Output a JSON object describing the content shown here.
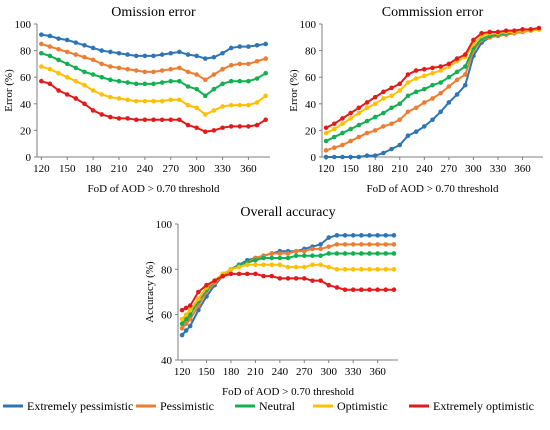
{
  "colors": {
    "extremely_pessimistic": "#2e75b6",
    "pessimistic": "#ed7d31",
    "neutral": "#12b050",
    "optimistic": "#ffc000",
    "extremely_optimistic": "#e31a1c"
  },
  "legend": {
    "items": [
      {
        "label": "Extremely pessimistic",
        "color_key": "extremely_pessimistic"
      },
      {
        "label": "Pessimistic",
        "color_key": "pessimistic"
      },
      {
        "label": "Neutral",
        "color_key": "neutral"
      },
      {
        "label": "Optimistic",
        "color_key": "optimistic"
      },
      {
        "label": "Extremely optimistic",
        "color_key": "extremely_optimistic"
      }
    ]
  },
  "chart_data": [
    {
      "type": "line",
      "title": "Omission error",
      "xlabel": "FoD of AOD > 0.70 threshold",
      "ylabel": "Error (%)",
      "x": [
        120,
        130,
        140,
        150,
        160,
        170,
        180,
        190,
        200,
        210,
        220,
        230,
        240,
        250,
        260,
        270,
        280,
        290,
        300,
        310,
        320,
        330,
        340,
        350,
        360,
        370,
        380
      ],
      "xticks": [
        120,
        150,
        180,
        210,
        240,
        270,
        300,
        330,
        360
      ],
      "ylim": [
        0,
        100
      ],
      "yticks": [
        0,
        20,
        40,
        60,
        80,
        100
      ],
      "grid": false,
      "series": [
        {
          "name": "Extremely pessimistic",
          "color_key": "extremely_pessimistic",
          "values": [
            92,
            91,
            89,
            88,
            86,
            84,
            82,
            80,
            79,
            78,
            77,
            76,
            76,
            76,
            77,
            78,
            79,
            77,
            76,
            74,
            75,
            78,
            82,
            83,
            83,
            84,
            85
          ]
        },
        {
          "name": "Pessimistic",
          "color_key": "pessimistic",
          "values": [
            85,
            83,
            81,
            79,
            77,
            75,
            73,
            70,
            68,
            67,
            66,
            65,
            64,
            64,
            65,
            66,
            67,
            64,
            62,
            58,
            62,
            66,
            69,
            70,
            70,
            72,
            74
          ]
        },
        {
          "name": "Neutral",
          "color_key": "neutral",
          "values": [
            78,
            76,
            73,
            70,
            67,
            64,
            62,
            60,
            58,
            57,
            56,
            55,
            55,
            55,
            56,
            57,
            57,
            53,
            51,
            46,
            51,
            55,
            57,
            57,
            57,
            59,
            63
          ]
        },
        {
          "name": "Optimistic",
          "color_key": "optimistic",
          "values": [
            68,
            66,
            63,
            60,
            57,
            54,
            50,
            47,
            45,
            44,
            43,
            42,
            42,
            42,
            42,
            43,
            43,
            39,
            37,
            32,
            35,
            38,
            39,
            39,
            39,
            41,
            46
          ]
        },
        {
          "name": "Extremely optimistic",
          "color_key": "extremely_optimistic",
          "values": [
            57,
            55,
            50,
            47,
            44,
            40,
            35,
            32,
            30,
            29,
            29,
            28,
            28,
            28,
            28,
            28,
            28,
            24,
            22,
            19,
            20,
            22,
            23,
            23,
            23,
            24,
            28
          ]
        }
      ]
    },
    {
      "type": "line",
      "title": "Commission error",
      "xlabel": "FoD of AOD > 0.70 threshold",
      "ylabel": "Error (%)",
      "x": [
        120,
        130,
        140,
        150,
        160,
        170,
        180,
        190,
        200,
        210,
        220,
        230,
        240,
        250,
        260,
        270,
        280,
        290,
        300,
        310,
        320,
        330,
        340,
        350,
        360,
        370,
        380
      ],
      "xticks": [
        120,
        150,
        180,
        210,
        240,
        270,
        300,
        330,
        360
      ],
      "ylim": [
        0,
        100
      ],
      "yticks": [
        0,
        20,
        40,
        60,
        80,
        100
      ],
      "grid": false,
      "series": [
        {
          "name": "Extremely pessimistic",
          "color_key": "extremely_pessimistic",
          "values": [
            0,
            0,
            0,
            0,
            0,
            1,
            1,
            3,
            6,
            9,
            16,
            19,
            23,
            28,
            34,
            41,
            47,
            54,
            76,
            86,
            90,
            92,
            93,
            94,
            95,
            95,
            96
          ]
        },
        {
          "name": "Pessimistic",
          "color_key": "pessimistic",
          "values": [
            5,
            7,
            9,
            12,
            15,
            18,
            20,
            23,
            25,
            28,
            34,
            37,
            41,
            44,
            48,
            53,
            58,
            62,
            80,
            88,
            90,
            91,
            92,
            93,
            94,
            95,
            96
          ]
        },
        {
          "name": "Neutral",
          "color_key": "neutral",
          "values": [
            12,
            15,
            18,
            21,
            24,
            27,
            30,
            33,
            37,
            40,
            46,
            49,
            51,
            54,
            56,
            60,
            64,
            68,
            82,
            89,
            91,
            92,
            93,
            94,
            95,
            95,
            96
          ]
        },
        {
          "name": "Optimistic",
          "color_key": "optimistic",
          "values": [
            18,
            21,
            25,
            29,
            33,
            37,
            40,
            44,
            46,
            50,
            56,
            59,
            61,
            63,
            65,
            68,
            72,
            75,
            85,
            91,
            93,
            93,
            94,
            94,
            95,
            95,
            96
          ]
        },
        {
          "name": "Extremely optimistic",
          "color_key": "extremely_optimistic",
          "values": [
            22,
            25,
            29,
            33,
            37,
            41,
            45,
            49,
            52,
            55,
            62,
            65,
            66,
            67,
            68,
            70,
            74,
            77,
            88,
            93,
            94,
            94,
            95,
            95,
            96,
            96,
            97
          ]
        }
      ]
    },
    {
      "type": "line",
      "title": "Overall accuracy",
      "xlabel": "FoD of AOD > 0.70 threshold",
      "ylabel": "Accuracy (%)",
      "x": [
        120,
        125,
        130,
        140,
        150,
        160,
        170,
        180,
        190,
        200,
        210,
        220,
        230,
        240,
        250,
        260,
        270,
        280,
        290,
        300,
        310,
        320,
        330,
        340,
        350,
        360,
        370,
        380
      ],
      "xticks": [
        120,
        150,
        180,
        210,
        240,
        270,
        300,
        330,
        360
      ],
      "ylim": [
        40,
        100
      ],
      "yticks": [
        40,
        60,
        80,
        100
      ],
      "grid": false,
      "series": [
        {
          "name": "Extremely pessimistic",
          "color_key": "extremely_pessimistic",
          "values": [
            51,
            53,
            55,
            62,
            68,
            73,
            77,
            80,
            82,
            84,
            85,
            86,
            87,
            88,
            88,
            88,
            89,
            90,
            91,
            94,
            95,
            95,
            95,
            95,
            95,
            95,
            95,
            95
          ]
        },
        {
          "name": "Pessimistic",
          "color_key": "pessimistic",
          "values": [
            54,
            56,
            58,
            64,
            70,
            74,
            77,
            80,
            82,
            83,
            85,
            86,
            87,
            87,
            87,
            88,
            88,
            89,
            89,
            90,
            91,
            91,
            91,
            91,
            91,
            91,
            91,
            91
          ]
        },
        {
          "name": "Neutral",
          "color_key": "neutral",
          "values": [
            56,
            58,
            60,
            66,
            71,
            75,
            78,
            80,
            82,
            83,
            84,
            85,
            85,
            85,
            85,
            86,
            86,
            86,
            86,
            87,
            87,
            87,
            87,
            87,
            87,
            87,
            87,
            87
          ]
        },
        {
          "name": "Optimistic",
          "color_key": "optimistic",
          "values": [
            58,
            60,
            62,
            67,
            72,
            75,
            78,
            80,
            81,
            82,
            82,
            82,
            82,
            82,
            81,
            81,
            81,
            82,
            82,
            81,
            80,
            80,
            80,
            80,
            80,
            80,
            80,
            80
          ]
        },
        {
          "name": "Extremely optimistic",
          "color_key": "extremely_optimistic",
          "values": [
            62,
            63,
            64,
            70,
            73,
            75,
            77,
            78,
            78,
            78,
            78,
            77,
            77,
            76,
            76,
            76,
            76,
            75,
            75,
            73,
            72,
            71,
            71,
            71,
            71,
            71,
            71,
            71
          ]
        }
      ]
    }
  ]
}
